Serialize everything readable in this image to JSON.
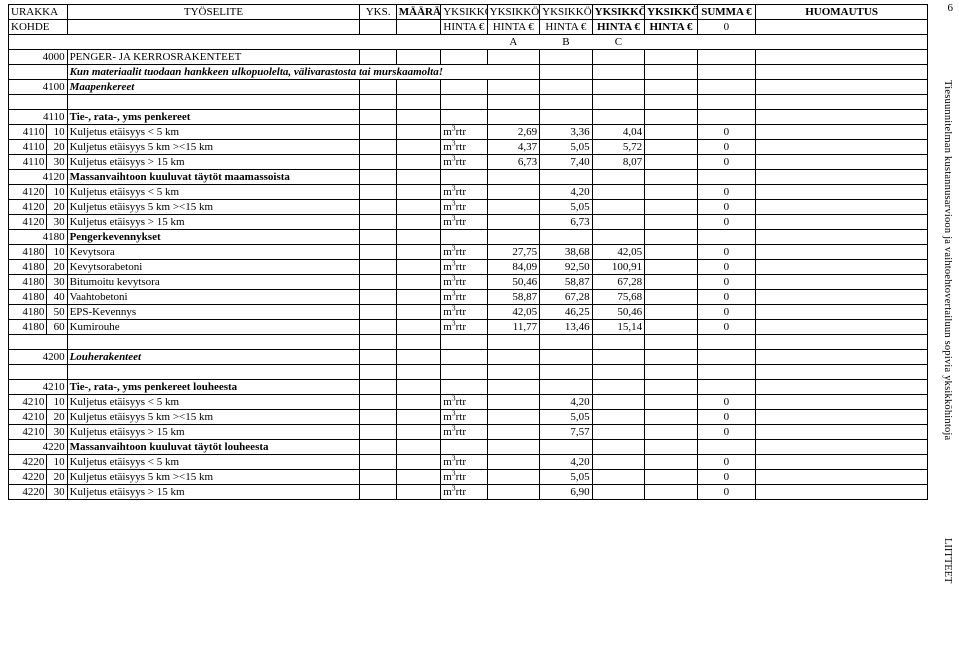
{
  "side": {
    "page_number": "6",
    "vertical_text": "Tiesuunnitelman kustannusarvioon ja vaihtoehtovertailuun sopivia yksikköhintoja",
    "liitteet": "LIITTEET"
  },
  "header": {
    "urakka": "URAKKA",
    "tyoselite": "TYÖSELITE",
    "yks": "YKS.",
    "maara": "MÄÄRÄ",
    "yksikko": "YKSIKKÖ",
    "summa": "SUMMA €",
    "huomautus": "HUOMAUTUS",
    "kohde": "KOHDE",
    "hinta": "HINTA €",
    "zero": "0",
    "abc": {
      "a": "A",
      "b": "B",
      "c": "C"
    }
  },
  "unit": "m³rtr",
  "section1": {
    "code": "4000",
    "title": "PENGER- JA KERROSRAKENTEET",
    "note": "Kun materiaalit tuodaan hankkeen ulkopuolelta, välivarastosta tai murskaamolta!",
    "sub_code": "4100",
    "sub_title": "Maapenkereet"
  },
  "g4110": {
    "code": "4110",
    "title": "Tie-, rata-, yms penkereet",
    "rows": [
      {
        "code": "4110",
        "sub": "10",
        "desc": "Kuljetus etäisyys < 5 km",
        "hA": "2,69",
        "hB": "3,36",
        "hC": "4,04",
        "sum": "0"
      },
      {
        "code": "4110",
        "sub": "20",
        "desc": "Kuljetus etäisyys 5 km ><15 km",
        "hA": "4,37",
        "hB": "5,05",
        "hC": "5,72",
        "sum": "0"
      },
      {
        "code": "4110",
        "sub": "30",
        "desc": "Kuljetus etäisyys > 15 km",
        "hA": "6,73",
        "hB": "7,40",
        "hC": "8,07",
        "sum": "0"
      }
    ]
  },
  "g4120": {
    "code": "4120",
    "title": "Massanvaihtoon kuuluvat täytöt maamassoista",
    "rows": [
      {
        "code": "4120",
        "sub": "10",
        "desc": "Kuljetus etäisyys < 5 km",
        "hA": "",
        "hB": "4,20",
        "hC": "",
        "sum": "0"
      },
      {
        "code": "4120",
        "sub": "20",
        "desc": "Kuljetus etäisyys 5 km ><15 km",
        "hA": "",
        "hB": "5,05",
        "hC": "",
        "sum": "0"
      },
      {
        "code": "4120",
        "sub": "30",
        "desc": "Kuljetus etäisyys > 15 km",
        "hA": "",
        "hB": "6,73",
        "hC": "",
        "sum": "0"
      }
    ]
  },
  "g4180": {
    "code": "4180",
    "title": "Pengerkevennykset",
    "rows": [
      {
        "code": "4180",
        "sub": "10",
        "desc": "Kevytsora",
        "hA": "27,75",
        "hB": "38,68",
        "hC": "42,05",
        "sum": "0"
      },
      {
        "code": "4180",
        "sub": "20",
        "desc": "Kevytsorabetoni",
        "hA": "84,09",
        "hB": "92,50",
        "hC": "100,91",
        "sum": "0"
      },
      {
        "code": "4180",
        "sub": "30",
        "desc": "Bitumoitu kevytsora",
        "hA": "50,46",
        "hB": "58,87",
        "hC": "67,28",
        "sum": "0"
      },
      {
        "code": "4180",
        "sub": "40",
        "desc": "Vaahtobetoni",
        "hA": "58,87",
        "hB": "67,28",
        "hC": "75,68",
        "sum": "0"
      },
      {
        "code": "4180",
        "sub": "50",
        "desc": "EPS-Kevennys",
        "hA": "42,05",
        "hB": "46,25",
        "hC": "50,46",
        "sum": "0"
      },
      {
        "code": "4180",
        "sub": "60",
        "desc": "Kumirouhe",
        "hA": "11,77",
        "hB": "13,46",
        "hC": "15,14",
        "sum": "0"
      }
    ]
  },
  "section2": {
    "code": "4200",
    "title": "Louherakenteet"
  },
  "g4210": {
    "code": "4210",
    "title": "Tie-, rata-, yms penkereet louheesta",
    "rows": [
      {
        "code": "4210",
        "sub": "10",
        "desc": "Kuljetus etäisyys < 5 km",
        "hA": "",
        "hB": "4,20",
        "hC": "",
        "sum": "0"
      },
      {
        "code": "4210",
        "sub": "20",
        "desc": "Kuljetus etäisyys 5 km ><15 km",
        "hA": "",
        "hB": "5,05",
        "hC": "",
        "sum": "0"
      },
      {
        "code": "4210",
        "sub": "30",
        "desc": "Kuljetus etäisyys > 15 km",
        "hA": "",
        "hB": "7,57",
        "hC": "",
        "sum": "0"
      }
    ]
  },
  "g4220": {
    "code": "4220",
    "title": "Massanvaihtoon kuuluvat täytöt louheesta",
    "rows": [
      {
        "code": "4220",
        "sub": "10",
        "desc": "Kuljetus etäisyys < 5 km",
        "hA": "",
        "hB": "4,20",
        "hC": "",
        "sum": "0"
      },
      {
        "code": "4220",
        "sub": "20",
        "desc": "Kuljetus etäisyys 5 km ><15 km",
        "hA": "",
        "hB": "5,05",
        "hC": "",
        "sum": "0"
      },
      {
        "code": "4220",
        "sub": "30",
        "desc": "Kuljetus etäisyys > 15 km",
        "hA": "",
        "hB": "6,90",
        "hC": "",
        "sum": "0"
      }
    ]
  }
}
